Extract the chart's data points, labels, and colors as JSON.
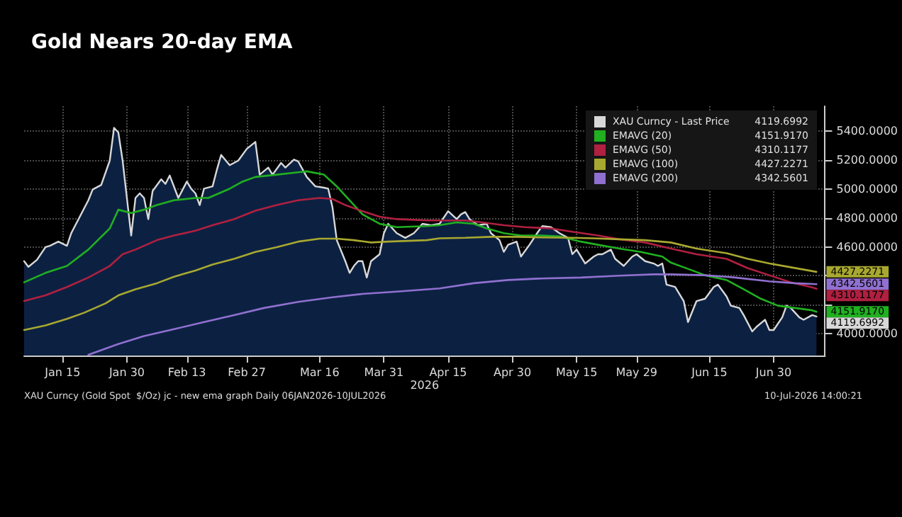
{
  "chart_data": {
    "type": "line",
    "title": "Gold Nears 20-day EMA",
    "xlabel": "2026",
    "xlim": [
      "2026-01-06",
      "2026-07-12"
    ],
    "xticks": [
      {
        "value": "2026-01-15",
        "label": "Jan 15"
      },
      {
        "value": "2026-01-30",
        "label": "Jan 30"
      },
      {
        "value": "2026-02-13",
        "label": "Feb 13"
      },
      {
        "value": "2026-02-27",
        "label": "Feb 27"
      },
      {
        "value": "2026-03-16",
        "label": "Mar 16"
      },
      {
        "value": "2026-03-31",
        "label": "Mar 31"
      },
      {
        "value": "2026-04-15",
        "label": "Apr 15"
      },
      {
        "value": "2026-04-30",
        "label": "Apr 30"
      },
      {
        "value": "2026-05-15",
        "label": "May 15"
      },
      {
        "value": "2026-05-29",
        "label": "May 29"
      },
      {
        "value": "2026-06-15",
        "label": "Jun 15"
      },
      {
        "value": "2026-06-30",
        "label": "Jun 30"
      }
    ],
    "ylim": [
      3850,
      5570
    ],
    "yticks": [
      {
        "value": 4000,
        "label": "4000.0000"
      },
      {
        "value": 4200,
        "label": null
      },
      {
        "value": 4400,
        "label": null
      },
      {
        "value": 4600,
        "label": "4600.0000"
      },
      {
        "value": 4800,
        "label": "4800.0000"
      },
      {
        "value": 5000,
        "label": "5000.0000"
      },
      {
        "value": 5200,
        "label": "5200.0000"
      },
      {
        "value": 5400,
        "label": "5400.0000"
      }
    ],
    "grid": true,
    "legend": "top right",
    "series": [
      {
        "name": "XAU Curncy - Last Price",
        "type": "area",
        "color": "#d8d8d8",
        "x": [
          "2026-01-06",
          "2026-01-07",
          "2026-01-09",
          "2026-01-11",
          "2026-01-12",
          "2026-01-14",
          "2026-01-16",
          "2026-01-17",
          "2026-01-19",
          "2026-01-21",
          "2026-01-22",
          "2026-01-24",
          "2026-01-26",
          "2026-01-27",
          "2026-01-28",
          "2026-01-29",
          "2026-01-30",
          "2026-01-31",
          "2026-02-01",
          "2026-02-02",
          "2026-02-03",
          "2026-02-04",
          "2026-02-05",
          "2026-02-07",
          "2026-02-08",
          "2026-02-09",
          "2026-02-11",
          "2026-02-13",
          "2026-02-14",
          "2026-02-15",
          "2026-02-16",
          "2026-02-17",
          "2026-02-19",
          "2026-02-20",
          "2026-02-21",
          "2026-02-23",
          "2026-02-24",
          "2026-02-25",
          "2026-02-27",
          "2026-03-01",
          "2026-03-02",
          "2026-03-04",
          "2026-03-05",
          "2026-03-07",
          "2026-03-08",
          "2026-03-10",
          "2026-03-11",
          "2026-03-13",
          "2026-03-15",
          "2026-03-17",
          "2026-03-18",
          "2026-03-19",
          "2026-03-20",
          "2026-03-22",
          "2026-03-23",
          "2026-03-24",
          "2026-03-25",
          "2026-03-26",
          "2026-03-27",
          "2026-03-28",
          "2026-03-30",
          "2026-03-31",
          "2026-04-01",
          "2026-04-03",
          "2026-04-05",
          "2026-04-07",
          "2026-04-09",
          "2026-04-11",
          "2026-04-13",
          "2026-04-15",
          "2026-04-17",
          "2026-04-18",
          "2026-04-19",
          "2026-04-20",
          "2026-04-22",
          "2026-04-24",
          "2026-04-25",
          "2026-04-27",
          "2026-04-28",
          "2026-04-29",
          "2026-05-01",
          "2026-05-02",
          "2026-05-04",
          "2026-05-06",
          "2026-05-07",
          "2026-05-09",
          "2026-05-11",
          "2026-05-13",
          "2026-05-14",
          "2026-05-15",
          "2026-05-17",
          "2026-05-19",
          "2026-05-20",
          "2026-05-21",
          "2026-05-23",
          "2026-05-24",
          "2026-05-26",
          "2026-05-28",
          "2026-05-29",
          "2026-05-31",
          "2026-06-02",
          "2026-06-03",
          "2026-06-04",
          "2026-06-05",
          "2026-06-07",
          "2026-06-09",
          "2026-06-10",
          "2026-06-12",
          "2026-06-14",
          "2026-06-16",
          "2026-06-17",
          "2026-06-19",
          "2026-06-20",
          "2026-06-22",
          "2026-06-23",
          "2026-06-25",
          "2026-06-26",
          "2026-06-28",
          "2026-06-29",
          "2026-06-30",
          "2026-07-02",
          "2026-07-03",
          "2026-07-04",
          "2026-07-06",
          "2026-07-07",
          "2026-07-09",
          "2026-07-10"
        ],
        "values": [
          4501,
          4462,
          4510,
          4598,
          4607,
          4636,
          4607,
          4694,
          4808,
          4921,
          4995,
          5027,
          5195,
          5421,
          5389,
          5195,
          4937,
          4678,
          4937,
          4969,
          4937,
          4791,
          4985,
          5066,
          5034,
          5092,
          4937,
          5050,
          5001,
          4969,
          4888,
          5001,
          5017,
          5131,
          5234,
          5163,
          5179,
          5195,
          5276,
          5324,
          5098,
          5147,
          5098,
          5179,
          5147,
          5202,
          5189,
          5082,
          5017,
          5008,
          5001,
          4872,
          4646,
          4501,
          4420,
          4468,
          4501,
          4501,
          4388,
          4501,
          4549,
          4694,
          4759,
          4694,
          4662,
          4694,
          4759,
          4749,
          4759,
          4846,
          4791,
          4824,
          4840,
          4791,
          4749,
          4759,
          4694,
          4646,
          4565,
          4614,
          4636,
          4533,
          4614,
          4704,
          4743,
          4736,
          4694,
          4662,
          4549,
          4581,
          4485,
          4533,
          4549,
          4549,
          4581,
          4517,
          4468,
          4533,
          4549,
          4501,
          4485,
          4468,
          4485,
          4339,
          4323,
          4226,
          4081,
          4226,
          4242,
          4323,
          4339,
          4258,
          4194,
          4178,
          4129,
          4016,
          4048,
          4097,
          4026,
          4026,
          4113,
          4194,
          4178,
          4113,
          4097,
          4129,
          4119.6992
        ]
      },
      {
        "name": "EMAVG (20)",
        "color": "#20b020",
        "x": [
          "2026-01-06",
          "2026-01-11",
          "2026-01-16",
          "2026-01-21",
          "2026-01-26",
          "2026-01-28",
          "2026-01-31",
          "2026-02-03",
          "2026-02-06",
          "2026-02-10",
          "2026-02-15",
          "2026-02-18",
          "2026-02-23",
          "2026-02-26",
          "2026-03-01",
          "2026-03-06",
          "2026-03-11",
          "2026-03-13",
          "2026-03-17",
          "2026-03-20",
          "2026-03-23",
          "2026-03-26",
          "2026-03-30",
          "2026-04-03",
          "2026-04-10",
          "2026-04-13",
          "2026-04-17",
          "2026-04-21",
          "2026-04-24",
          "2026-04-28",
          "2026-05-02",
          "2026-05-07",
          "2026-05-11",
          "2026-05-16",
          "2026-05-20",
          "2026-05-25",
          "2026-05-30",
          "2026-06-04",
          "2026-06-06",
          "2026-06-09",
          "2026-06-14",
          "2026-06-19",
          "2026-06-23",
          "2026-06-27",
          "2026-07-01",
          "2026-07-05",
          "2026-07-09",
          "2026-07-10"
        ],
        "values": [
          4355,
          4420,
          4468,
          4581,
          4727,
          4856,
          4833,
          4856,
          4888,
          4921,
          4937,
          4937,
          5001,
          5050,
          5082,
          5098,
          5114,
          5121,
          5098,
          5017,
          4921,
          4824,
          4759,
          4736,
          4743,
          4749,
          4769,
          4759,
          4727,
          4694,
          4678,
          4678,
          4672,
          4636,
          4614,
          4588,
          4565,
          4533,
          4491,
          4459,
          4404,
          4371,
          4307,
          4242,
          4194,
          4178,
          4162,
          4151.917
        ]
      },
      {
        "name": "EMAVG (50)",
        "color": "#b02040",
        "x": [
          "2026-01-06",
          "2026-01-11",
          "2026-01-16",
          "2026-01-21",
          "2026-01-26",
          "2026-01-29",
          "2026-02-01",
          "2026-02-06",
          "2026-02-10",
          "2026-02-15",
          "2026-02-19",
          "2026-02-24",
          "2026-03-01",
          "2026-03-06",
          "2026-03-11",
          "2026-03-16",
          "2026-03-19",
          "2026-03-22",
          "2026-03-25",
          "2026-03-30",
          "2026-04-03",
          "2026-04-10",
          "2026-04-13",
          "2026-04-19",
          "2026-04-23",
          "2026-04-28",
          "2026-05-03",
          "2026-05-09",
          "2026-05-14",
          "2026-05-20",
          "2026-05-25",
          "2026-05-31",
          "2026-06-06",
          "2026-06-12",
          "2026-06-19",
          "2026-06-24",
          "2026-06-29",
          "2026-07-04",
          "2026-07-09",
          "2026-07-10"
        ],
        "values": [
          4226,
          4265,
          4323,
          4388,
          4468,
          4549,
          4581,
          4646,
          4678,
          4711,
          4749,
          4791,
          4849,
          4888,
          4921,
          4937,
          4930,
          4888,
          4856,
          4808,
          4791,
          4782,
          4782,
          4782,
          4769,
          4749,
          4736,
          4727,
          4704,
          4678,
          4652,
          4630,
          4588,
          4549,
          4517,
          4452,
          4404,
          4355,
          4320,
          4310.1177
        ]
      },
      {
        "name": "EMAVG (100)",
        "color": "#a8a830",
        "x": [
          "2026-01-06",
          "2026-01-11",
          "2026-01-16",
          "2026-01-20",
          "2026-01-25",
          "2026-01-28",
          "2026-02-01",
          "2026-02-06",
          "2026-02-10",
          "2026-02-15",
          "2026-02-19",
          "2026-02-24",
          "2026-03-01",
          "2026-03-06",
          "2026-03-11",
          "2026-03-16",
          "2026-03-20",
          "2026-03-24",
          "2026-03-28",
          "2026-04-01",
          "2026-04-10",
          "2026-04-13",
          "2026-04-19",
          "2026-04-25",
          "2026-05-01",
          "2026-05-07",
          "2026-05-14",
          "2026-05-19",
          "2026-05-25",
          "2026-05-31",
          "2026-06-06",
          "2026-06-12",
          "2026-06-19",
          "2026-06-24",
          "2026-06-29",
          "2026-07-04",
          "2026-07-10"
        ],
        "values": [
          4026,
          4058,
          4103,
          4145,
          4210,
          4265,
          4307,
          4349,
          4394,
          4436,
          4478,
          4517,
          4565,
          4598,
          4636,
          4656,
          4656,
          4646,
          4630,
          4636,
          4646,
          4659,
          4662,
          4669,
          4669,
          4665,
          4662,
          4659,
          4652,
          4646,
          4630,
          4588,
          4556,
          4517,
          4485,
          4459,
          4427.2271
        ]
      },
      {
        "name": "EMAVG (200)",
        "color": "#9070d0",
        "x": [
          "2026-01-21",
          "2026-01-28",
          "2026-02-03",
          "2026-02-10",
          "2026-02-17",
          "2026-02-24",
          "2026-03-03",
          "2026-03-11",
          "2026-03-19",
          "2026-03-26",
          "2026-04-03",
          "2026-04-13",
          "2026-04-21",
          "2026-04-29",
          "2026-05-06",
          "2026-05-16",
          "2026-05-25",
          "2026-06-02",
          "2026-06-06",
          "2026-06-14",
          "2026-06-21",
          "2026-06-29",
          "2026-07-05",
          "2026-07-10"
        ],
        "values": [
          3855,
          3929,
          3984,
          4032,
          4081,
          4129,
          4178,
          4220,
          4252,
          4275,
          4291,
          4313,
          4349,
          4371,
          4381,
          4388,
          4401,
          4410,
          4410,
          4404,
          4388,
          4362,
          4349,
          4342.5601
        ]
      }
    ],
    "annotations": [
      {
        "text": "4427.2271",
        "x": "2026-07-10",
        "y": 4427.2271
      },
      {
        "text": "4342.5601",
        "x": "2026-07-10",
        "y": 4342.5601
      },
      {
        "text": "4310.1177",
        "x": "2026-07-10",
        "y": 4310.1177
      },
      {
        "text": "4151.9170",
        "x": "2026-07-10",
        "y": 4151.917
      },
      {
        "text": "4119.6992",
        "x": "2026-07-10",
        "y": 4119.6992
      },
      "XAU Curncy (Gold Spot  $/Oz) jc - new ema graph Daily 06JAN2026-10JUL2026",
      "10-Jul-2026 14:00:21"
    ]
  }
}
